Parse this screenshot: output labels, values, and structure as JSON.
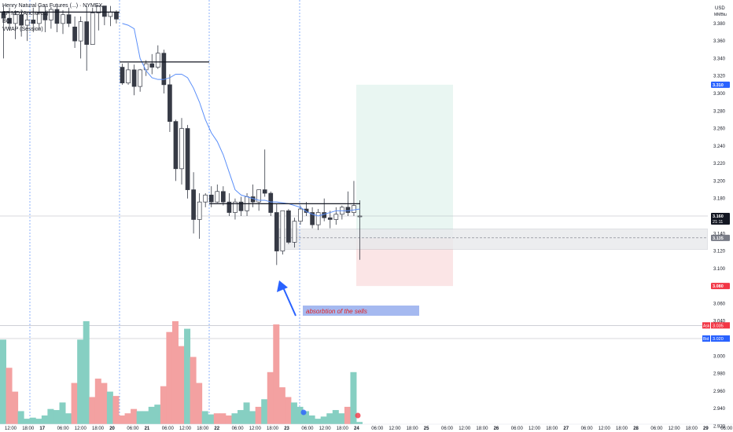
{
  "header": {
    "symbol_title": "Henry Natural Gas Futures (...) · NYMEX",
    "line2": "EP MD (Anchored)",
    "line3": "BO",
    "line4": "VWAP (Session)"
  },
  "currency": "USD",
  "currency_sub": "MMBtu",
  "colors": {
    "up": "#ffffff",
    "down": "#363a45",
    "candle_border": "#363a45",
    "vwap": "#5b8ff9",
    "vol_up": "#86cfc2",
    "vol_down": "#f3a1a1",
    "session_line": "#5b8ff9",
    "target_zone": "#e9f6f2",
    "stop_zone": "#fbe5e6",
    "range_zone": "#e8e9ec",
    "annotation_fill": "#a5b9f0",
    "annotation_text": "#e02424",
    "arrow": "#2962ff",
    "price_label_bg": "#131722",
    "target_label_bg": "#2962ff",
    "stop_label_bg": "#f23645"
  },
  "annotation": {
    "text": "absorbtion of the sells"
  },
  "price_labels": {
    "last": {
      "value": "3.160",
      "sub": "21:11"
    },
    "entry": {
      "value": "3.135"
    },
    "target": {
      "value": "3.310"
    },
    "stop": {
      "value": "3.080"
    },
    "ask": {
      "tag": "Ask",
      "value": "3.035"
    },
    "bid": {
      "tag": "Bid",
      "value": "3.020"
    }
  },
  "chart_data": {
    "type": "candlestick",
    "y_axis": {
      "range": [
        2.915,
        3.405
      ],
      "ticks": [
        "3.380",
        "3.360",
        "3.340",
        "3.320",
        "3.300",
        "3.280",
        "3.260",
        "3.240",
        "3.220",
        "3.200",
        "3.180",
        "3.160",
        "3.140",
        "3.120",
        "3.100",
        "3.080",
        "3.060",
        "3.040",
        "3.020",
        "3.000",
        "2.980",
        "2.960",
        "2.940",
        "2.920"
      ]
    },
    "x_axis": {
      "ticks": [
        "12:00",
        "18:00",
        "17",
        "06:00",
        "12:00",
        "18:00",
        "20",
        "06:00",
        "21",
        "06:00",
        "12:00",
        "18:00",
        "22",
        "06:00",
        "12:00",
        "18:00",
        "23",
        "06:00",
        "12:00",
        "18:00",
        "24",
        "06:00",
        "12:00",
        "18:00",
        "25",
        "06:00",
        "12:00",
        "18:00",
        "26",
        "06:00",
        "12:00",
        "18:00",
        "27",
        "06:00",
        "12:00",
        "18:00",
        "28",
        "06:00",
        "12:00",
        "18:00",
        "29",
        "06:00"
      ]
    },
    "candles": [
      {
        "o": 3.392,
        "h": 3.4,
        "l": 3.34,
        "c": 3.386
      },
      {
        "o": 3.386,
        "h": 3.398,
        "l": 3.372,
        "c": 3.38
      },
      {
        "o": 3.38,
        "h": 3.395,
        "l": 3.362,
        "c": 3.39
      },
      {
        "o": 3.39,
        "h": 3.396,
        "l": 3.365,
        "c": 3.378
      },
      {
        "o": 3.378,
        "h": 3.392,
        "l": 3.36,
        "c": 3.384
      },
      {
        "o": 3.384,
        "h": 3.398,
        "l": 3.37,
        "c": 3.38
      },
      {
        "o": 3.38,
        "h": 3.4,
        "l": 3.372,
        "c": 3.392
      },
      {
        "o": 3.392,
        "h": 3.4,
        "l": 3.37,
        "c": 3.384
      },
      {
        "o": 3.384,
        "h": 3.399,
        "l": 3.374,
        "c": 3.396
      },
      {
        "o": 3.396,
        "h": 3.4,
        "l": 3.37,
        "c": 3.38
      },
      {
        "o": 3.38,
        "h": 3.395,
        "l": 3.368,
        "c": 3.39
      },
      {
        "o": 3.39,
        "h": 3.398,
        "l": 3.376,
        "c": 3.38
      },
      {
        "o": 3.376,
        "h": 3.388,
        "l": 3.352,
        "c": 3.36
      },
      {
        "o": 3.36,
        "h": 3.388,
        "l": 3.34,
        "c": 3.382
      },
      {
        "o": 3.382,
        "h": 3.4,
        "l": 3.326,
        "c": 3.356
      },
      {
        "o": 3.356,
        "h": 3.398,
        "l": 3.356,
        "c": 3.392
      },
      {
        "o": 3.392,
        "h": 3.4,
        "l": 3.372,
        "c": 3.4
      },
      {
        "o": 3.4,
        "h": 3.4,
        "l": 3.378,
        "c": 3.388
      },
      {
        "o": 3.388,
        "h": 3.4,
        "l": 3.377,
        "c": 3.393
      },
      {
        "o": 3.393,
        "h": 3.395,
        "l": 3.38,
        "c": 3.385
      },
      {
        "o": 3.33,
        "h": 3.334,
        "l": 3.31,
        "c": 3.312
      },
      {
        "o": 3.312,
        "h": 3.335,
        "l": 3.31,
        "c": 3.327
      },
      {
        "o": 3.327,
        "h": 3.333,
        "l": 3.298,
        "c": 3.308
      },
      {
        "o": 3.308,
        "h": 3.328,
        "l": 3.302,
        "c": 3.327
      },
      {
        "o": 3.327,
        "h": 3.338,
        "l": 3.32,
        "c": 3.334
      },
      {
        "o": 3.334,
        "h": 3.345,
        "l": 3.322,
        "c": 3.33
      },
      {
        "o": 3.33,
        "h": 3.355,
        "l": 3.328,
        "c": 3.346
      },
      {
        "o": 3.346,
        "h": 3.35,
        "l": 3.3,
        "c": 3.31
      },
      {
        "o": 3.31,
        "h": 3.322,
        "l": 3.256,
        "c": 3.268
      },
      {
        "o": 3.268,
        "h": 3.27,
        "l": 3.2,
        "c": 3.214
      },
      {
        "o": 3.214,
        "h": 3.272,
        "l": 3.196,
        "c": 3.26
      },
      {
        "o": 3.26,
        "h": 3.264,
        "l": 3.18,
        "c": 3.19
      },
      {
        "o": 3.19,
        "h": 3.21,
        "l": 3.14,
        "c": 3.156
      },
      {
        "o": 3.156,
        "h": 3.186,
        "l": 3.134,
        "c": 3.176
      },
      {
        "o": 3.176,
        "h": 3.186,
        "l": 3.17,
        "c": 3.184
      },
      {
        "o": 3.184,
        "h": 3.194,
        "l": 3.17,
        "c": 3.176
      },
      {
        "o": 3.176,
        "h": 3.196,
        "l": 3.175,
        "c": 3.188
      },
      {
        "o": 3.188,
        "h": 3.194,
        "l": 3.172,
        "c": 3.176
      },
      {
        "o": 3.176,
        "h": 3.186,
        "l": 3.16,
        "c": 3.164
      },
      {
        "o": 3.164,
        "h": 3.18,
        "l": 3.156,
        "c": 3.176
      },
      {
        "o": 3.176,
        "h": 3.182,
        "l": 3.16,
        "c": 3.166
      },
      {
        "o": 3.166,
        "h": 3.186,
        "l": 3.16,
        "c": 3.182
      },
      {
        "o": 3.182,
        "h": 3.196,
        "l": 3.17,
        "c": 3.176
      },
      {
        "o": 3.176,
        "h": 3.19,
        "l": 3.166,
        "c": 3.19
      },
      {
        "o": 3.19,
        "h": 3.236,
        "l": 3.182,
        "c": 3.186
      },
      {
        "o": 3.186,
        "h": 3.188,
        "l": 3.16,
        "c": 3.164
      },
      {
        "o": 3.164,
        "h": 3.174,
        "l": 3.104,
        "c": 3.12
      },
      {
        "o": 3.12,
        "h": 3.166,
        "l": 3.116,
        "c": 3.166
      },
      {
        "o": 3.166,
        "h": 3.168,
        "l": 3.128,
        "c": 3.13
      },
      {
        "o": 3.13,
        "h": 3.158,
        "l": 3.124,
        "c": 3.154
      },
      {
        "o": 3.154,
        "h": 3.172,
        "l": 3.15,
        "c": 3.168
      },
      {
        "o": 3.168,
        "h": 3.176,
        "l": 3.16,
        "c": 3.164
      },
      {
        "o": 3.164,
        "h": 3.17,
        "l": 3.146,
        "c": 3.15
      },
      {
        "o": 3.15,
        "h": 3.168,
        "l": 3.144,
        "c": 3.164
      },
      {
        "o": 3.164,
        "h": 3.18,
        "l": 3.154,
        "c": 3.158
      },
      {
        "o": 3.158,
        "h": 3.166,
        "l": 3.146,
        "c": 3.156
      },
      {
        "o": 3.156,
        "h": 3.17,
        "l": 3.15,
        "c": 3.162
      },
      {
        "o": 3.162,
        "h": 3.172,
        "l": 3.156,
        "c": 3.17
      },
      {
        "o": 3.17,
        "h": 3.188,
        "l": 3.16,
        "c": 3.164
      },
      {
        "o": 3.164,
        "h": 3.2,
        "l": 3.16,
        "c": 3.172
      },
      {
        "o": 3.16,
        "h": 3.178,
        "l": 3.11,
        "c": 3.16
      }
    ],
    "volume": [
      {
        "v": 0.78,
        "d": "up"
      },
      {
        "v": 0.52,
        "d": "down"
      },
      {
        "v": 0.3,
        "d": "down"
      },
      {
        "v": 0.12,
        "d": "up"
      },
      {
        "v": 0.05,
        "d": "up"
      },
      {
        "v": 0.06,
        "d": "up"
      },
      {
        "v": 0.05,
        "d": "up"
      },
      {
        "v": 0.08,
        "d": "up"
      },
      {
        "v": 0.14,
        "d": "up"
      },
      {
        "v": 0.13,
        "d": "up"
      },
      {
        "v": 0.2,
        "d": "up"
      },
      {
        "v": 0.1,
        "d": "up"
      },
      {
        "v": 0.38,
        "d": "down"
      },
      {
        "v": 0.78,
        "d": "up"
      },
      {
        "v": 0.95,
        "d": "up"
      },
      {
        "v": 0.25,
        "d": "down"
      },
      {
        "v": 0.42,
        "d": "down"
      },
      {
        "v": 0.38,
        "d": "down"
      },
      {
        "v": 0.3,
        "d": "up"
      },
      {
        "v": 0.26,
        "d": "down"
      },
      {
        "v": 0.08,
        "d": "down"
      },
      {
        "v": 0.1,
        "d": "down"
      },
      {
        "v": 0.14,
        "d": "down"
      },
      {
        "v": 0.12,
        "d": "up"
      },
      {
        "v": 0.12,
        "d": "up"
      },
      {
        "v": 0.16,
        "d": "up"
      },
      {
        "v": 0.18,
        "d": "up"
      },
      {
        "v": 0.35,
        "d": "down"
      },
      {
        "v": 0.85,
        "d": "down"
      },
      {
        "v": 0.95,
        "d": "down"
      },
      {
        "v": 0.72,
        "d": "down"
      },
      {
        "v": 0.88,
        "d": "up"
      },
      {
        "v": 0.62,
        "d": "down"
      },
      {
        "v": 0.38,
        "d": "down"
      },
      {
        "v": 0.12,
        "d": "up"
      },
      {
        "v": 0.09,
        "d": "up"
      },
      {
        "v": 0.1,
        "d": "down"
      },
      {
        "v": 0.1,
        "d": "down"
      },
      {
        "v": 0.08,
        "d": "down"
      },
      {
        "v": 0.1,
        "d": "up"
      },
      {
        "v": 0.13,
        "d": "up"
      },
      {
        "v": 0.2,
        "d": "up"
      },
      {
        "v": 0.12,
        "d": "up"
      },
      {
        "v": 0.16,
        "d": "down"
      },
      {
        "v": 0.23,
        "d": "up"
      },
      {
        "v": 0.48,
        "d": "down"
      },
      {
        "v": 0.92,
        "d": "down"
      },
      {
        "v": 0.34,
        "d": "down"
      },
      {
        "v": 0.25,
        "d": "down"
      },
      {
        "v": 0.2,
        "d": "up"
      },
      {
        "v": 0.16,
        "d": "up"
      },
      {
        "v": 0.12,
        "d": "up"
      },
      {
        "v": 0.08,
        "d": "up"
      },
      {
        "v": 0.05,
        "d": "up"
      },
      {
        "v": 0.07,
        "d": "up"
      },
      {
        "v": 0.1,
        "d": "up"
      },
      {
        "v": 0.13,
        "d": "up"
      },
      {
        "v": 0.1,
        "d": "up"
      },
      {
        "v": 0.16,
        "d": "down"
      },
      {
        "v": 0.48,
        "d": "up"
      },
      {
        "v": 0.02,
        "d": "up"
      }
    ],
    "vwap": [
      3.38,
      3.378,
      3.374,
      3.34,
      3.326,
      3.318,
      3.316,
      3.316,
      3.318,
      3.322,
      3.322,
      3.318,
      3.306,
      3.29,
      3.27,
      3.255,
      3.245,
      3.23,
      3.21,
      3.19,
      3.184,
      3.182,
      3.18,
      3.178,
      3.178,
      3.176,
      3.176,
      3.175,
      3.174,
      3.172,
      3.17,
      3.165,
      3.162,
      3.16,
      3.162,
      3.164,
      3.166,
      3.166,
      3.166,
      3.167,
      3.168
    ],
    "levels": {
      "horizontal_line_high": 3.336,
      "horizontal_line_mid": 3.174,
      "entry": 3.135,
      "target": 3.31,
      "stop": 3.08,
      "last": 3.16,
      "range_low": 3.122,
      "range_high": 3.145,
      "ask": 3.035,
      "bid": 3.02
    }
  }
}
